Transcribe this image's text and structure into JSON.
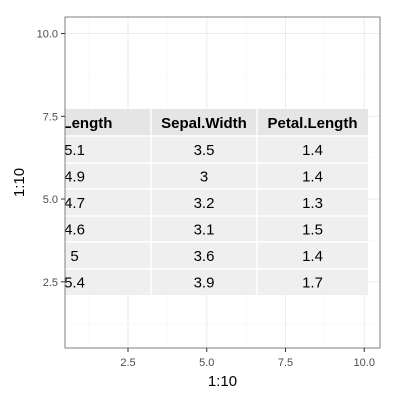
{
  "chart_data": {
    "type": "table",
    "xlabel": "1:10",
    "ylabel": "1:10",
    "xlim": [
      0.5,
      10.5
    ],
    "ylim": [
      0.5,
      10.5
    ],
    "x_ticks": [
      2.5,
      5.0,
      7.5,
      10.0
    ],
    "y_ticks": [
      2.5,
      5.0,
      7.5,
      10.0
    ],
    "x_tick_labels": [
      "2.5",
      "5.0",
      "7.5",
      "10.0"
    ],
    "y_tick_labels": [
      "2.5",
      "5.0",
      "7.5",
      "10.0"
    ],
    "grid": true,
    "table": {
      "columns": [
        "pal.Length",
        "Sepal.Width",
        "Petal.Length"
      ],
      "rows": [
        [
          "5.1",
          "3.5",
          "1.4"
        ],
        [
          "4.9",
          "3",
          "1.4"
        ],
        [
          "4.7",
          "3.2",
          "1.3"
        ],
        [
          "4.6",
          "3.1",
          "1.5"
        ],
        [
          "5",
          "3.6",
          "1.4"
        ],
        [
          "5.4",
          "3.9",
          "1.7"
        ]
      ]
    },
    "colors": {
      "panel_background": "#ffffff",
      "panel_border": "#7f7f7f",
      "grid_major": "#ebebeb",
      "grid_minor": "#f5f5f5",
      "table_header_bg": "#e5e5e5",
      "table_cell_bg": "#efefef",
      "table_separator": "#ffffff",
      "text": "#000000",
      "axis_text": "#4d4d4d"
    }
  }
}
